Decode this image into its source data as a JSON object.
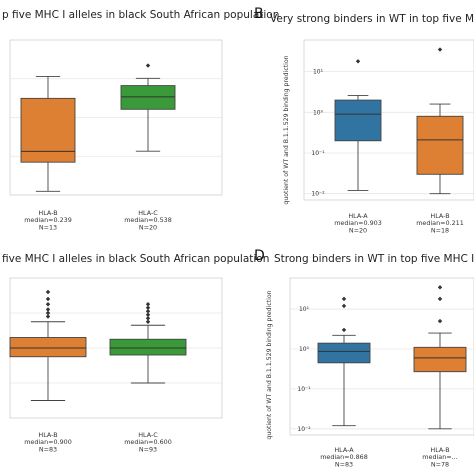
{
  "panels": [
    {
      "letter": "",
      "title": "p five MHC I alleles in black South African population"
    },
    {
      "letter": "B",
      "title": "Very strong binders in WT in top five MHC I alle"
    },
    {
      "letter": "",
      "title": "five MHC I alleles in black South African population"
    },
    {
      "letter": "D",
      "title": "Strong binders in WT in top five MHC I allele"
    }
  ],
  "colors": {
    "orange": "#dd8033",
    "green": "#3a9a3a",
    "blue": "#3274a1",
    "grid": "#e6e6e6"
  },
  "chart_data": [
    {
      "type": "box",
      "panel": "A",
      "yscale": "linear",
      "title": "p five MHC I alleles in black South African population",
      "ylabel": "",
      "boxes": [
        {
          "cat_lines": [
            "HLA-B",
            "median=0.239",
            "N=13"
          ],
          "color": "#dd8033",
          "whislo": 0.02,
          "q1": 0.18,
          "median": 0.239,
          "q3": 0.53,
          "whishi": 0.65,
          "fliers": []
        },
        {
          "cat_lines": [
            "HLA-C",
            "median=0.538",
            "N=20"
          ],
          "color": "#3a9a3a",
          "whislo": 0.24,
          "q1": 0.47,
          "median": 0.538,
          "q3": 0.6,
          "whishi": 0.64,
          "fliers": [
            0.71
          ]
        }
      ],
      "ylim": [
        0.0,
        0.85
      ]
    },
    {
      "type": "box",
      "panel": "B",
      "yscale": "log",
      "title": "Very strong binders in WT in top five MHC I alle",
      "ylabel": "quotient of WT and B.1.1.529 binding prediction",
      "ytick_labels": [
        "10⁻²",
        "10⁻¹",
        "10⁰",
        "10¹"
      ],
      "yticks": [
        0.01,
        0.1,
        1,
        10
      ],
      "boxes": [
        {
          "cat_lines": [
            "HLA-A",
            "median=0.903",
            "N=20"
          ],
          "color": "#3274a1",
          "whislo": 0.012,
          "q1": 0.2,
          "median": 0.903,
          "q3": 2.0,
          "whishi": 2.6,
          "fliers": [
            18
          ]
        },
        {
          "cat_lines": [
            "HLA-B",
            "median=0.211",
            "N=18"
          ],
          "color": "#dd8033",
          "whislo": 0.01,
          "q1": 0.03,
          "median": 0.211,
          "q3": 0.8,
          "whishi": 1.6,
          "fliers": [
            35
          ]
        }
      ],
      "ylim": [
        0.007,
        60
      ]
    },
    {
      "type": "box",
      "panel": "C",
      "yscale": "linear",
      "title": "five MHC I alleles in black South African population",
      "ylabel": "",
      "boxes": [
        {
          "cat_lines": [
            "HLA-B",
            "median=0.900",
            "N=83"
          ],
          "color": "#dd8033",
          "whislo": 0.6,
          "q1": 0.85,
          "median": 0.9,
          "q3": 0.96,
          "whishi": 1.05,
          "fliers": [
            1.08,
            1.1,
            1.12,
            1.15,
            1.18,
            1.22
          ]
        },
        {
          "cat_lines": [
            "HLA-C",
            "median=0.600",
            "N=93"
          ],
          "color": "#3a9a3a",
          "whislo": 0.7,
          "q1": 0.86,
          "median": 0.9,
          "q3": 0.95,
          "whishi": 1.03,
          "fliers": [
            1.05,
            1.07,
            1.09,
            1.11,
            1.13,
            1.15
          ]
        }
      ],
      "ylim": [
        0.5,
        1.3
      ]
    },
    {
      "type": "box",
      "panel": "D",
      "yscale": "log",
      "title": "Strong binders in WT in top five MHC I allele",
      "ylabel": "quotient of WT and B.1.1.529 binding prediction",
      "ytick_labels": [
        "10⁻²",
        "10⁻¹",
        "10⁰",
        "10¹"
      ],
      "yticks": [
        0.01,
        0.1,
        1,
        10
      ],
      "boxes": [
        {
          "cat_lines": [
            "HLA-A",
            "median=0.868",
            "N=83"
          ],
          "color": "#3274a1",
          "whislo": 0.012,
          "q1": 0.45,
          "median": 0.868,
          "q3": 1.4,
          "whishi": 2.2,
          "fliers": [
            3,
            12,
            18
          ]
        },
        {
          "cat_lines": [
            "HLA-B",
            "median=...",
            "N=78"
          ],
          "color": "#dd8033",
          "whislo": 0.01,
          "q1": 0.27,
          "median": 0.6,
          "q3": 1.1,
          "whishi": 2.5,
          "fliers": [
            5,
            18,
            35
          ]
        }
      ],
      "ylim": [
        0.007,
        60
      ]
    }
  ]
}
